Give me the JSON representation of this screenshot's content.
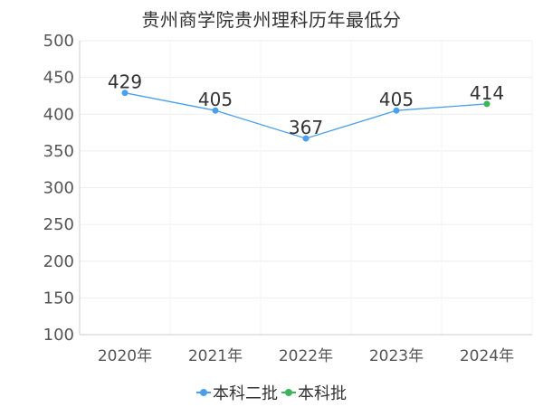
{
  "chart_data": {
    "type": "line",
    "title": "贵州商学院贵州理科历年最低分",
    "categories": [
      "2020年",
      "2021年",
      "2022年",
      "2023年",
      "2024年"
    ],
    "series": [
      {
        "name": "本科二批",
        "color": "#4a9eeb",
        "values": [
          429,
          405,
          367,
          405,
          null
        ]
      },
      {
        "name": "本科批",
        "color": "#3cb55a",
        "values": [
          null,
          null,
          null,
          null,
          414
        ]
      }
    ],
    "line_color": "#4a9eeb",
    "data_labels": [
      "429",
      "405",
      "367",
      "405",
      "414"
    ],
    "y_ticks": [
      "100",
      "150",
      "200",
      "250",
      "300",
      "350",
      "400",
      "450",
      "500"
    ],
    "ylim": [
      100,
      500
    ],
    "grid": true,
    "legend_position": "bottom"
  }
}
